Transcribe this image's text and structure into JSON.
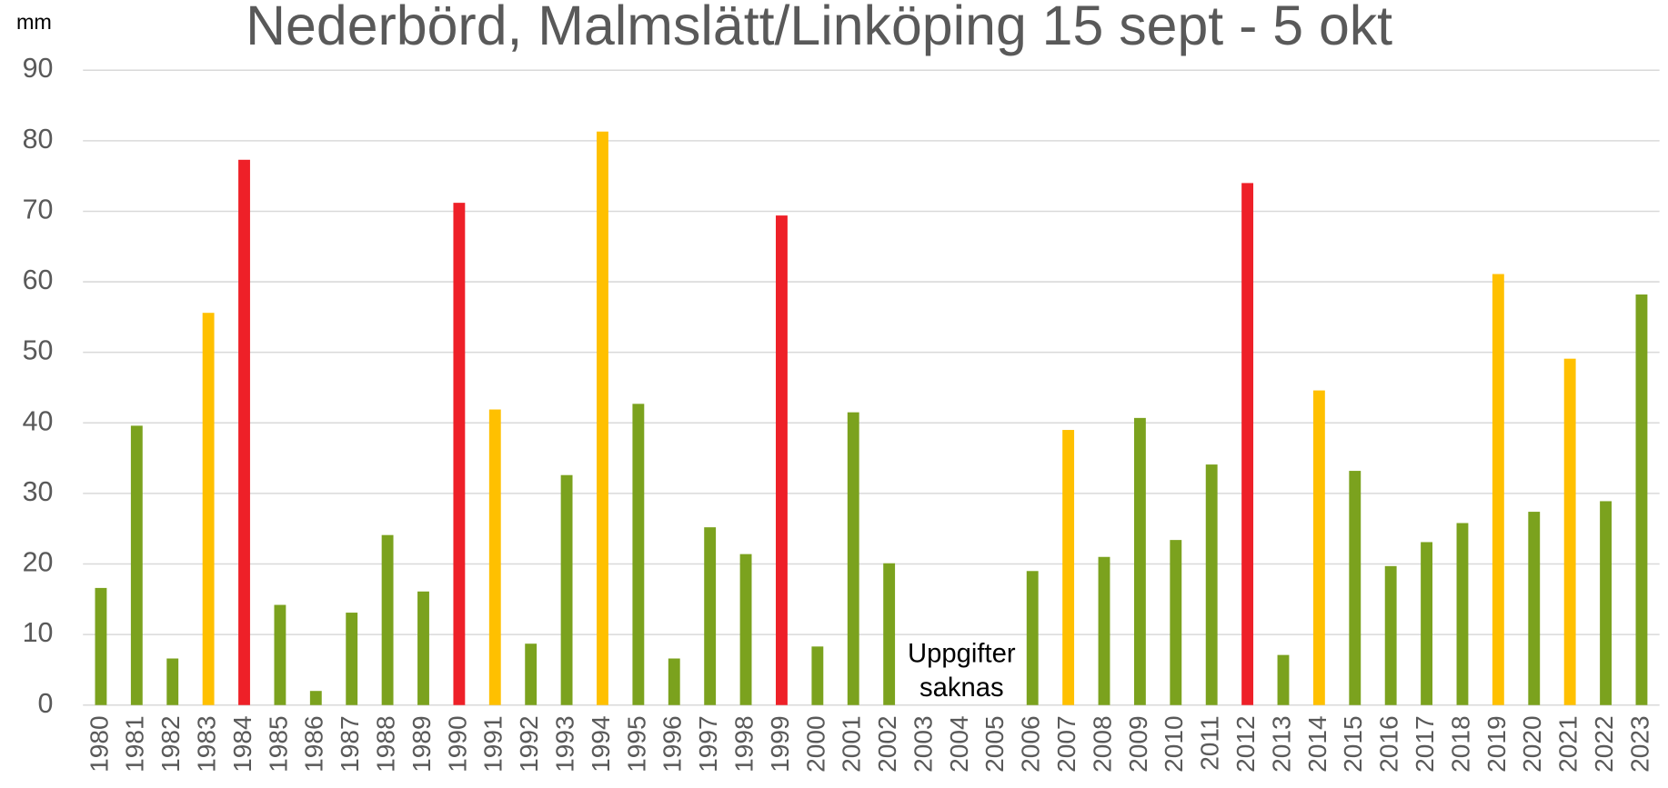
{
  "chart_data": {
    "type": "bar",
    "title": "Nederbörd, Malmslätt/Linköping 15 sept - 5 okt",
    "y_label": "mm",
    "annotation": [
      "Uppgifter",
      "saknas"
    ],
    "categories": [
      "1980",
      "1981",
      "1982",
      "1983",
      "1984",
      "1985",
      "1986",
      "1987",
      "1988",
      "1989",
      "1990",
      "1991",
      "1992",
      "1993",
      "1994",
      "1995",
      "1996",
      "1997",
      "1998",
      "1999",
      "2000",
      "2001",
      "2002",
      "2003",
      "2004",
      "2005",
      "2006",
      "2007",
      "2008",
      "2009",
      "2010",
      "2011",
      "2012",
      "2013",
      "2014",
      "2015",
      "2016",
      "2017",
      "2018",
      "2019",
      "2020",
      "2021",
      "2022",
      "2023"
    ],
    "values": [
      16.6,
      39.6,
      6.6,
      55.6,
      77.3,
      14.2,
      2.0,
      13.1,
      24.1,
      16.1,
      71.2,
      41.9,
      8.7,
      32.6,
      81.3,
      42.7,
      6.6,
      25.2,
      21.4,
      69.4,
      8.3,
      41.5,
      20.1,
      null,
      null,
      null,
      19.0,
      39.0,
      21.0,
      40.7,
      23.4,
      34.1,
      74.0,
      7.1,
      44.6,
      33.2,
      19.7,
      23.1,
      25.8,
      61.1,
      27.4,
      49.1,
      28.9,
      58.2
    ],
    "colors": [
      "#7ba21e",
      "#7ba21e",
      "#7ba21e",
      "#ffc000",
      "#ee2028",
      "#7ba21e",
      "#7ba21e",
      "#7ba21e",
      "#7ba21e",
      "#7ba21e",
      "#ee2028",
      "#ffc000",
      "#7ba21e",
      "#7ba21e",
      "#ffc000",
      "#7ba21e",
      "#7ba21e",
      "#7ba21e",
      "#7ba21e",
      "#ee2028",
      "#7ba21e",
      "#7ba21e",
      "#7ba21e",
      "#7ba21e",
      "#7ba21e",
      "#7ba21e",
      "#7ba21e",
      "#ffc000",
      "#7ba21e",
      "#7ba21e",
      "#7ba21e",
      "#7ba21e",
      "#ee2028",
      "#7ba21e",
      "#ffc000",
      "#7ba21e",
      "#7ba21e",
      "#7ba21e",
      "#7ba21e",
      "#ffc000",
      "#7ba21e",
      "#ffc000",
      "#7ba21e",
      "#7ba21e"
    ],
    "ylim": [
      0,
      90
    ],
    "yticks": [
      0,
      10,
      20,
      30,
      40,
      50,
      60,
      70,
      80,
      90
    ],
    "grid": true
  }
}
